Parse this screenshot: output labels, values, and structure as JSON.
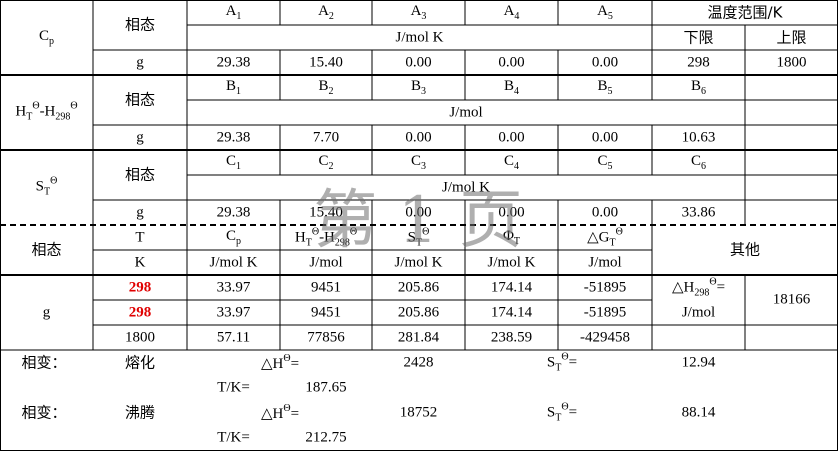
{
  "cp": {
    "symbol": {
      "base": "C",
      "sub": "p"
    },
    "phase_header": "相态",
    "coefficients": [
      {
        "base": "A",
        "sub": "1"
      },
      {
        "base": "A",
        "sub": "2"
      },
      {
        "base": "A",
        "sub": "3"
      },
      {
        "base": "A",
        "sub": "4"
      },
      {
        "base": "A",
        "sub": "5"
      }
    ],
    "unit": "J/mol K",
    "temperature_range": "温度范围/K",
    "lower": "下限",
    "upper": "上限",
    "phase": "g",
    "values": [
      "29.38",
      "15.40",
      "0.00",
      "0.00",
      "0.00"
    ],
    "lower_value": "298",
    "upper_value": "1800"
  },
  "enthalpy": {
    "symbol": [
      {
        "base": "H",
        "sub": "T",
        "sup": "Θ"
      },
      {
        "base": "-H",
        "sub": "298",
        "sup": "Θ"
      }
    ],
    "phase_header": "相态",
    "coefficients": [
      {
        "base": "B",
        "sub": "1"
      },
      {
        "base": "B",
        "sub": "2"
      },
      {
        "base": "B",
        "sub": "3"
      },
      {
        "base": "B",
        "sub": "4"
      },
      {
        "base": "B",
        "sub": "5"
      },
      {
        "base": "B",
        "sub": "6"
      }
    ],
    "unit": "J/mol",
    "phase": "g",
    "values": [
      "29.38",
      "7.70",
      "0.00",
      "0.00",
      "0.00",
      "10.63"
    ]
  },
  "entropy": {
    "symbol": {
      "base": "S",
      "sub": "T",
      "sup": "Θ"
    },
    "phase_header": "相态",
    "coefficients": [
      {
        "base": "C",
        "sub": "1"
      },
      {
        "base": "C",
        "sub": "2"
      },
      {
        "base": "C",
        "sub": "3"
      },
      {
        "base": "C",
        "sub": "4"
      },
      {
        "base": "C",
        "sub": "5"
      },
      {
        "base": "C",
        "sub": "6"
      }
    ],
    "unit": "J/mol K",
    "phase": "g",
    "values": [
      "29.38",
      "15.40",
      "0.00",
      "0.00",
      "0.00",
      "33.86"
    ]
  },
  "properties": {
    "phase_header": "相态",
    "columns": [
      {
        "name": "T",
        "unit": "K"
      },
      {
        "name": {
          "base": "C",
          "sub": "p"
        },
        "unit": "J/mol K"
      },
      {
        "name": [
          {
            "base": "H",
            "sub": "T",
            "sup": "Θ"
          },
          {
            "base": "-H",
            "sub": "298",
            "sup": "Θ"
          }
        ],
        "unit": "J/mol"
      },
      {
        "name": {
          "base": "S",
          "sub": "T",
          "sup": "Θ"
        },
        "unit": "J/mol K"
      },
      {
        "name": {
          "base": "Φ",
          "sub": "T"
        },
        "unit": "J/mol K"
      },
      {
        "name": {
          "base": "△G",
          "sub": "T",
          "sup": "Θ"
        },
        "unit": "J/mol"
      }
    ],
    "other_header": "其他",
    "phase": "g",
    "rows": [
      [
        "298",
        "33.97",
        "9451",
        "205.86",
        "174.14",
        "-51895"
      ],
      [
        "298",
        "33.97",
        "9451",
        "205.86",
        "174.14",
        "-51895"
      ],
      [
        "1800",
        "57.11",
        "77856",
        "281.84",
        "238.59",
        "-429458"
      ]
    ],
    "other_label": [
      {
        "base": "△H",
        "sub": "298",
        "sup": "Θ"
      },
      "="
    ],
    "other_unit": "J/mol",
    "other_value": "18166"
  },
  "phase_changes": [
    {
      "label": "相变：",
      "kind": "熔化",
      "enthalpy_label": [
        {
          "base": "△H",
          "sup": "Θ"
        },
        "="
      ],
      "enthalpy": "2428",
      "entropy_label": [
        {
          "base": "S",
          "sub": "T",
          "sup": "Θ"
        },
        "="
      ],
      "entropy": "12.94",
      "temperature_label": "T/K=",
      "temperature": "187.65"
    },
    {
      "label": "相变：",
      "kind": "沸腾",
      "enthalpy_label": [
        {
          "base": "△H",
          "sup": "Θ"
        },
        "="
      ],
      "enthalpy": "18752",
      "entropy_label": [
        {
          "base": "S",
          "sub": "T",
          "sup": "Θ"
        },
        "="
      ],
      "entropy": "88.14",
      "temperature_label": "T/K=",
      "temperature": "212.75"
    }
  ],
  "watermark": "第 1 页"
}
